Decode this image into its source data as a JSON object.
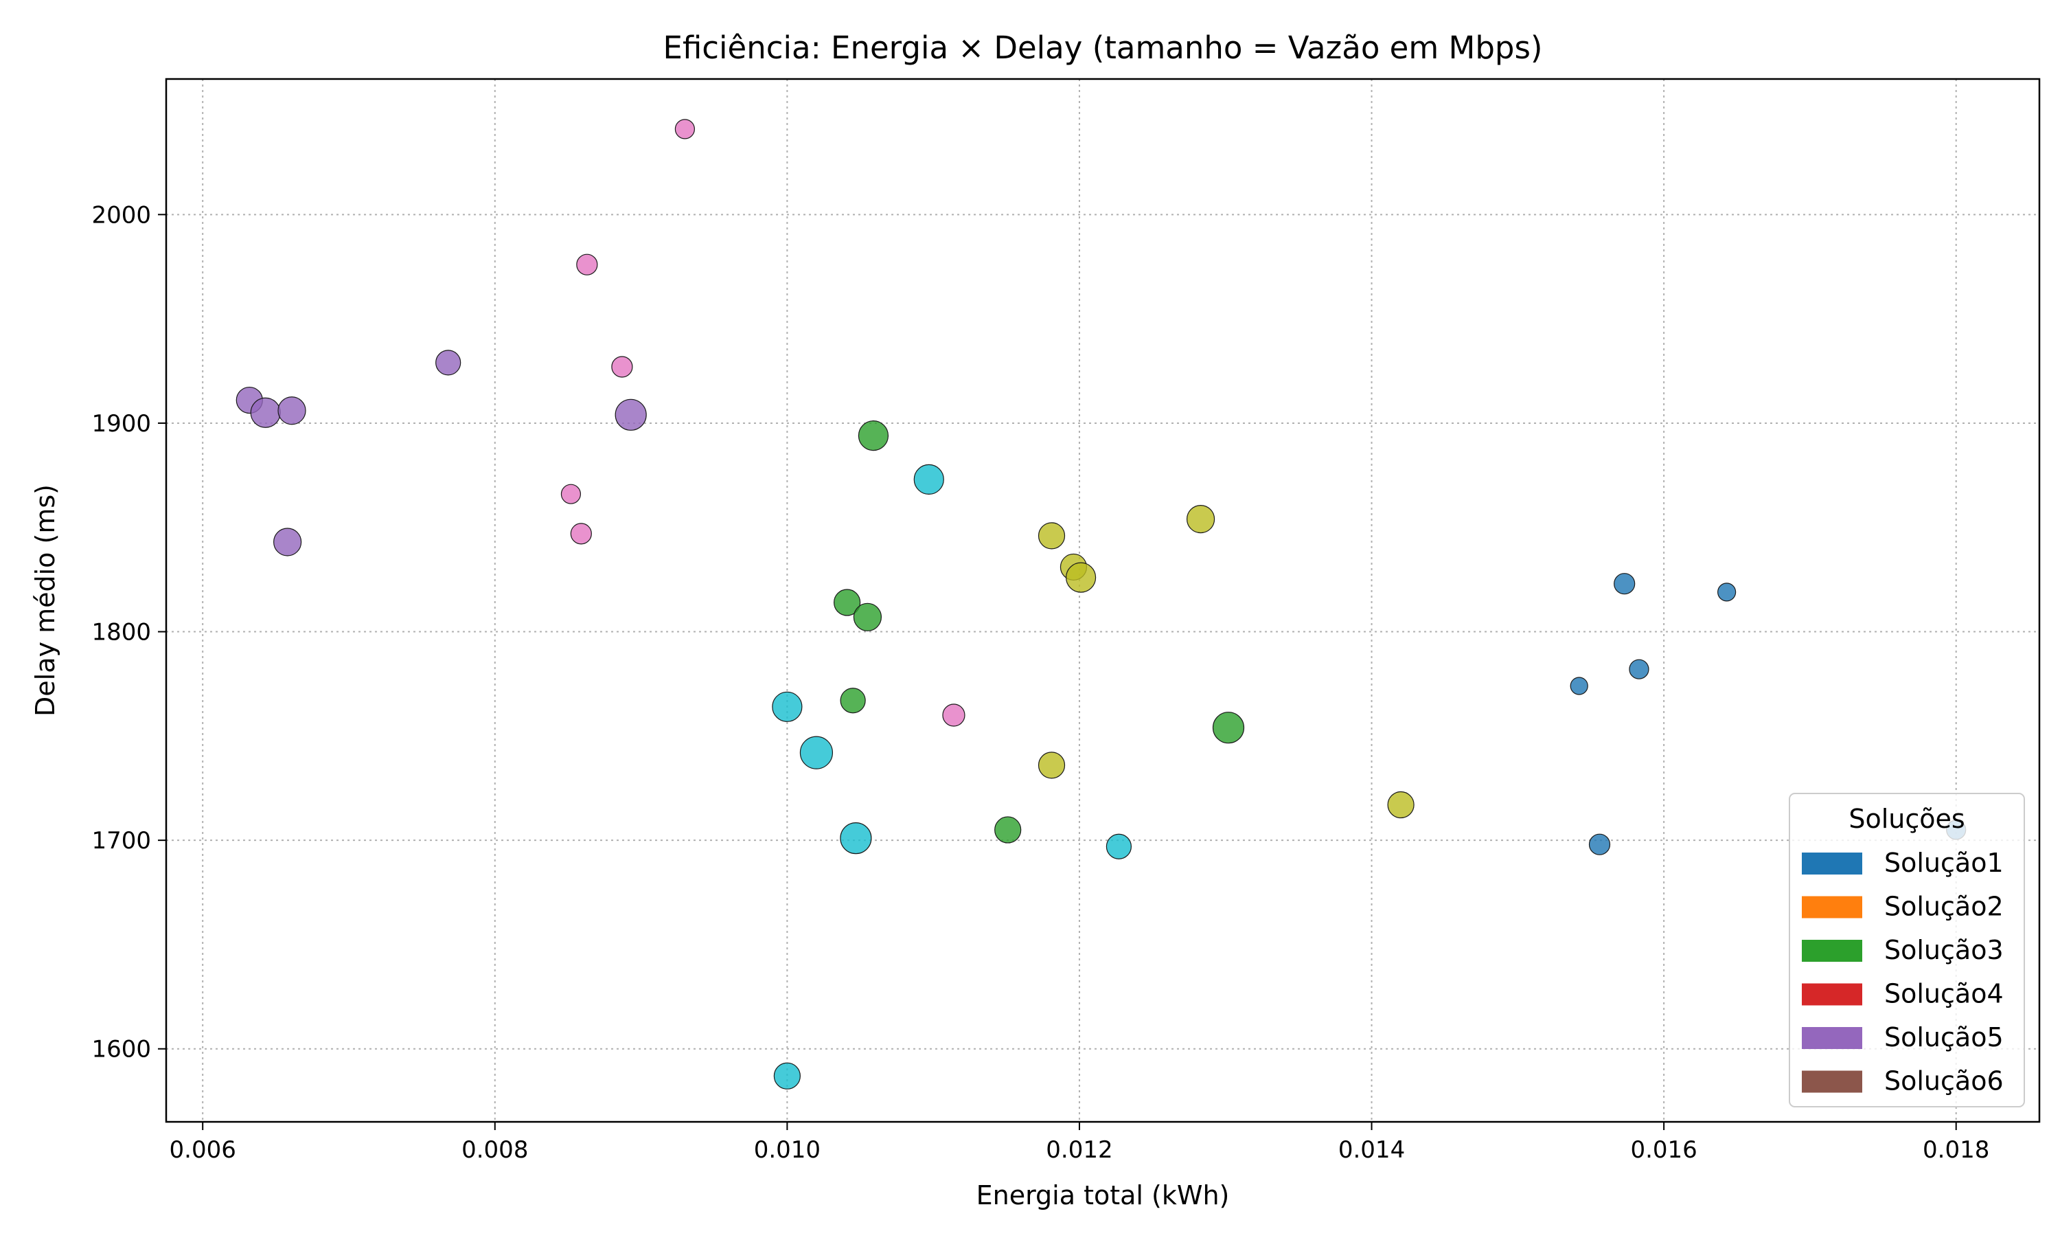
{
  "chart_data": {
    "type": "scatter",
    "title": "Eficiência: Energia × Delay (tamanho = Vazão em Mbps)",
    "xlabel": "Energia total (kWh)",
    "ylabel": "Delay médio (ms)",
    "xlim": [
      0.00575,
      0.01857
    ],
    "ylim": [
      1565,
      2065
    ],
    "xticks": [
      0.006,
      0.008,
      0.01,
      0.012,
      0.014,
      0.016,
      0.018
    ],
    "xtick_labels": [
      "0.006",
      "0.008",
      "0.010",
      "0.012",
      "0.014",
      "0.016",
      "0.018"
    ],
    "yticks": [
      1600,
      1700,
      1800,
      1900,
      2000
    ],
    "ytick_labels": [
      "1600",
      "1700",
      "1800",
      "1900",
      "2000"
    ],
    "grid": true,
    "legend_position": "lower-right",
    "legend": {
      "title": "Soluções",
      "entries": [
        {
          "label": "Solução1",
          "color": "#1f77b4"
        },
        {
          "label": "Solução2",
          "color": "#ff7f0e"
        },
        {
          "label": "Solução3",
          "color": "#2ca02c"
        },
        {
          "label": "Solução4",
          "color": "#d62728"
        },
        {
          "label": "Solução5",
          "color": "#9467bd"
        },
        {
          "label": "Solução6",
          "color": "#8c564b"
        }
      ]
    },
    "series": [
      {
        "name": "Solução1",
        "color": "#1f77b4",
        "points": [
          {
            "x": 0.01573,
            "y": 1823,
            "size": 30
          },
          {
            "x": 0.01643,
            "y": 1819,
            "size": 26
          },
          {
            "x": 0.01583,
            "y": 1782,
            "size": 28
          },
          {
            "x": 0.01542,
            "y": 1774,
            "size": 25
          },
          {
            "x": 0.01556,
            "y": 1698,
            "size": 30
          },
          {
            "x": 0.018,
            "y": 1705,
            "size": 28
          }
        ]
      },
      {
        "name": "Solução3",
        "color": "#2ca02c",
        "points": [
          {
            "x": 0.01059,
            "y": 1894,
            "size": 43
          },
          {
            "x": 0.01041,
            "y": 1814,
            "size": 38
          },
          {
            "x": 0.01055,
            "y": 1807,
            "size": 40
          },
          {
            "x": 0.01045,
            "y": 1767,
            "size": 36
          },
          {
            "x": 0.01302,
            "y": 1754,
            "size": 45
          },
          {
            "x": 0.01151,
            "y": 1705,
            "size": 38
          }
        ]
      },
      {
        "name": "Solução5",
        "color": "#9467bd",
        "points": [
          {
            "x": 0.00768,
            "y": 1929,
            "size": 36
          },
          {
            "x": 0.00632,
            "y": 1911,
            "size": 38
          },
          {
            "x": 0.00643,
            "y": 1905,
            "size": 43
          },
          {
            "x": 0.00661,
            "y": 1906,
            "size": 40
          },
          {
            "x": 0.00893,
            "y": 1904,
            "size": 45
          },
          {
            "x": 0.00658,
            "y": 1843,
            "size": 40
          }
        ]
      },
      {
        "name": "",
        "color": "#e377c2",
        "points": [
          {
            "x": 0.0093,
            "y": 2041,
            "size": 28
          },
          {
            "x": 0.00863,
            "y": 1976,
            "size": 30
          },
          {
            "x": 0.00887,
            "y": 1927,
            "size": 30
          },
          {
            "x": 0.00852,
            "y": 1866,
            "size": 28
          },
          {
            "x": 0.00859,
            "y": 1847,
            "size": 30
          },
          {
            "x": 0.01114,
            "y": 1760,
            "size": 32
          }
        ]
      },
      {
        "name": "",
        "color": "#bcbd22",
        "points": [
          {
            "x": 0.01283,
            "y": 1854,
            "size": 40
          },
          {
            "x": 0.01181,
            "y": 1846,
            "size": 38
          },
          {
            "x": 0.01196,
            "y": 1831,
            "size": 38
          },
          {
            "x": 0.01201,
            "y": 1826,
            "size": 43
          },
          {
            "x": 0.01181,
            "y": 1736,
            "size": 38
          },
          {
            "x": 0.0142,
            "y": 1717,
            "size": 38
          }
        ]
      },
      {
        "name": "",
        "color": "#17becf",
        "points": [
          {
            "x": 0.01097,
            "y": 1873,
            "size": 43
          },
          {
            "x": 0.01,
            "y": 1764,
            "size": 43
          },
          {
            "x": 0.0102,
            "y": 1742,
            "size": 47
          },
          {
            "x": 0.01047,
            "y": 1701,
            "size": 45
          },
          {
            "x": 0.01227,
            "y": 1697,
            "size": 36
          },
          {
            "x": 0.01,
            "y": 1587,
            "size": 38
          }
        ]
      }
    ]
  }
}
